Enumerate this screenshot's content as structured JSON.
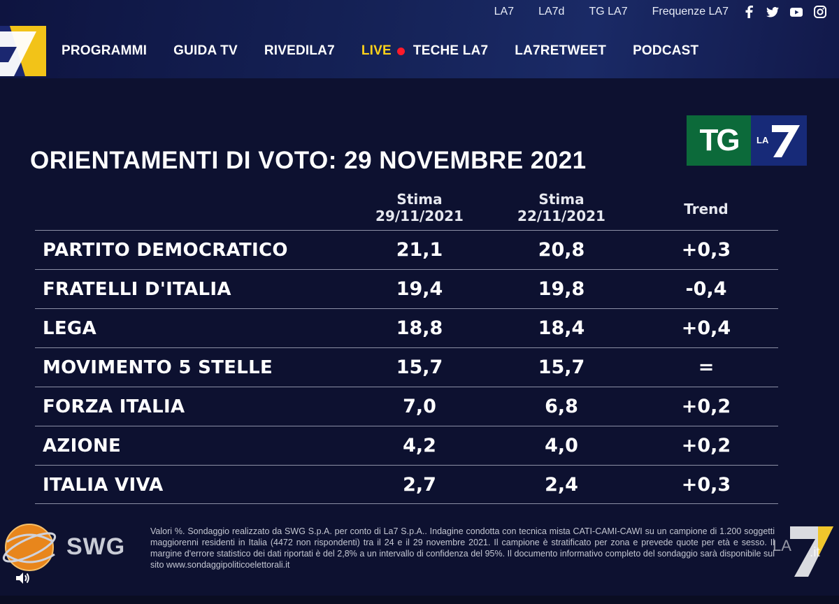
{
  "header": {
    "top_links": [
      "LA7",
      "LA7d",
      "TG LA7",
      "Frequenze LA7"
    ],
    "social_icons": [
      "facebook-icon",
      "twitter-icon",
      "youtube-icon",
      "instagram-icon"
    ],
    "nav": {
      "programmi": "PROGRAMMI",
      "guida_tv": "GUIDA TV",
      "rivedila7": "RIVEDILA7",
      "live": "LIVE",
      "teche": "TECHE LA7",
      "retweet": "LA7RETWEET",
      "podcast": "PODCAST"
    },
    "colors": {
      "live": "#ffd21a",
      "live_dot": "#ff1a2a",
      "logo_yellow": "#f2c318"
    }
  },
  "tg_logo": {
    "tg": "TG",
    "la": "LA"
  },
  "title": "ORIENTAMENTI DI VOTO: 29 NOVEMBRE 2021",
  "columns": {
    "stima1_label": "Stima",
    "stima1_date": "29/11/2021",
    "stima2_label": "Stima",
    "stima2_date": "22/11/2021",
    "trend": "Trend"
  },
  "rows": [
    {
      "party": "PARTITO DEMOCRATICO",
      "v1": "21,1",
      "v2": "20,8",
      "trend": "+0,3"
    },
    {
      "party": "FRATELLI D'ITALIA",
      "v1": "19,4",
      "v2": "19,8",
      "trend": "-0,4"
    },
    {
      "party": "LEGA",
      "v1": "18,8",
      "v2": "18,4",
      "trend": "+0,4"
    },
    {
      "party": "MOVIMENTO 5 STELLE",
      "v1": "15,7",
      "v2": "15,7",
      "trend": "="
    },
    {
      "party": "FORZA ITALIA",
      "v1": "7,0",
      "v2": "6,8",
      "trend": "+0,2"
    },
    {
      "party": "AZIONE",
      "v1": "4,2",
      "v2": "4,0",
      "trend": "+0,2"
    },
    {
      "party": "ITALIA VIVA",
      "v1": "2,7",
      "v2": "2,4",
      "trend": "+0,3"
    }
  ],
  "footer": {
    "swg": "SWG",
    "note": "Valori %. Sondaggio realizzato da SWG S.p.A. per conto di La7 S.p.A.. Indagine condotta con tecnica mista CATI-CAMI-CAWI su un campione di 1.200 soggetti maggiorenni residenti in Italia (4472 non rispondenti) tra il 24 e il 29 novembre 2021. Il campione è stratificato per zona e prevede quote per età e sesso. Il margine d'errore statistico dei dati riportati è del 2,8% a un intervallo di confidenza del 95%. Il documento informativo completo del sondaggio sarà disponibile sul sito www.sondaggipoliticoelettorali.it",
    "corner_la": "LA",
    "corner_it": ".it"
  }
}
